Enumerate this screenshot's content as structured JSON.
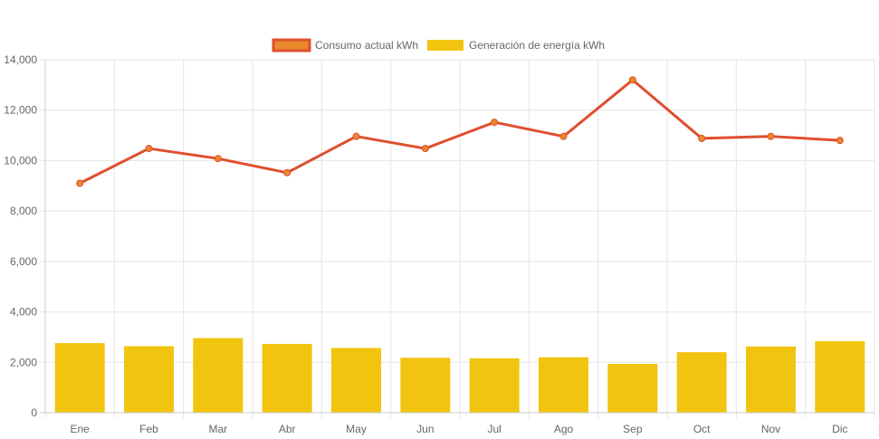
{
  "chart_data": {
    "type": "bar",
    "categories": [
      "Ene",
      "Feb",
      "Mar",
      "Abr",
      "May",
      "Jun",
      "Jul",
      "Ago",
      "Sep",
      "Oct",
      "Nov",
      "Dic"
    ],
    "series": [
      {
        "name": "Consumo actual kWh",
        "type": "line",
        "color": "#e04e2f",
        "marker_color": "#e8892b",
        "values": [
          9100,
          10480,
          10080,
          9520,
          10960,
          10480,
          11520,
          10960,
          13200,
          10880,
          10960,
          10800
        ]
      },
      {
        "name": "Generación de energía kWh",
        "type": "bar",
        "color": "#f1c40f",
        "values": [
          2760,
          2640,
          2960,
          2730,
          2570,
          2180,
          2160,
          2200,
          1940,
          2400,
          2630,
          2840
        ]
      }
    ],
    "ylim": [
      0,
      14000
    ],
    "yticks": [
      "0",
      "2,000",
      "4,000",
      "6,000",
      "8,000",
      "10,000",
      "12,000",
      "14,000"
    ],
    "ytick_values": [
      0,
      2000,
      4000,
      6000,
      8000,
      10000,
      12000,
      14000
    ],
    "grid": true,
    "legend_position": "top-center"
  }
}
